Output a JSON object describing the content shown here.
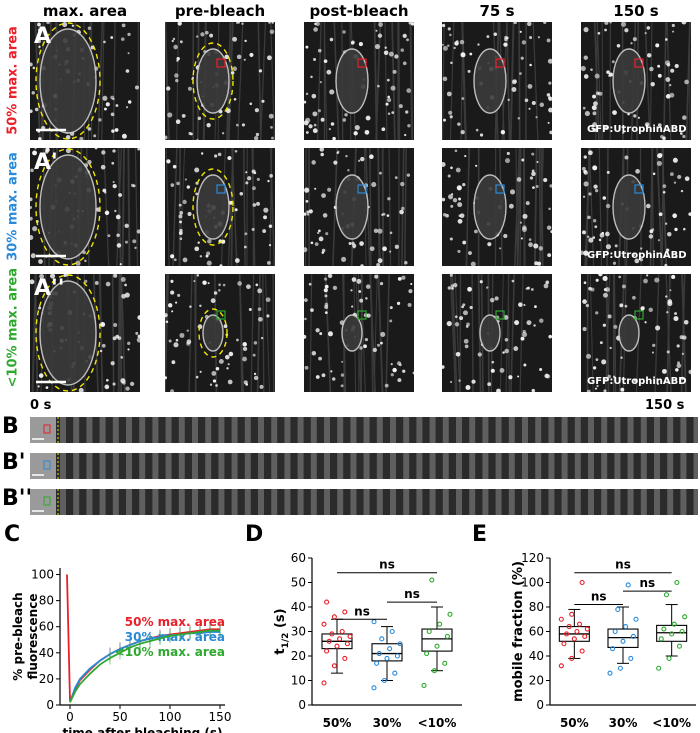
{
  "columns": [
    "max. area",
    "pre-bleach",
    "post-bleach",
    "75 s",
    "150 s"
  ],
  "rows": [
    {
      "letter": "A",
      "label": "50% max. area",
      "color": "#e8202a",
      "stamp": "GFP:UtrophinABD"
    },
    {
      "letter": "A'",
      "label": "30% max. area",
      "color": "#2a8ad8",
      "stamp": "GFP:UtrophinABD"
    },
    {
      "letter": "A''",
      "label": "<10% max. area",
      "color": "#2ea82e",
      "stamp": "GFP:UtrophinABD"
    }
  ],
  "kymograph": {
    "start_label": "0 s",
    "end_label": "150 s",
    "rows": [
      {
        "letter": "B",
        "color": "#e8202a"
      },
      {
        "letter": "B'",
        "color": "#2a8ad8"
      },
      {
        "letter": "B''",
        "color": "#2ea82e"
      }
    ]
  },
  "panel_letters": {
    "C": "C",
    "D": "D",
    "E": "E"
  },
  "chart_data": [
    {
      "type": "line",
      "panel": "C",
      "xlabel": "time after bleaching (s)",
      "ylabel": "% pre-bleach fluorescence",
      "xlim": [
        -10,
        155
      ],
      "ylim": [
        0,
        105
      ],
      "xticks": [
        0,
        50,
        100,
        150
      ],
      "yticks": [
        0,
        20,
        40,
        60,
        80,
        100
      ],
      "legend_position": "right",
      "series": [
        {
          "name": "50% max. area",
          "color": "#e8202a",
          "x": [
            -3,
            0,
            5,
            10,
            20,
            30,
            40,
            50,
            60,
            70,
            80,
            90,
            100,
            110,
            120,
            130,
            140,
            150
          ],
          "y": [
            100,
            3,
            12,
            19,
            27,
            34,
            39,
            43,
            46,
            49,
            51,
            53,
            54,
            55,
            56,
            57,
            58,
            58
          ]
        },
        {
          "name": "30% max. area",
          "color": "#2a8ad8",
          "x": [
            0,
            5,
            10,
            20,
            30,
            40,
            50,
            60,
            70,
            80,
            90,
            100,
            110,
            120,
            130,
            140,
            150
          ],
          "y": [
            2,
            13,
            20,
            28,
            34,
            39,
            43,
            46,
            49,
            51,
            52,
            53,
            54,
            55,
            55,
            56,
            56
          ]
        },
        {
          "name": "<10% max. area",
          "color": "#2ea82e",
          "x": [
            0,
            5,
            10,
            20,
            30,
            40,
            50,
            60,
            70,
            80,
            90,
            100,
            110,
            120,
            130,
            140,
            150
          ],
          "y": [
            2,
            10,
            16,
            24,
            31,
            36,
            40,
            44,
            47,
            49,
            51,
            53,
            54,
            55,
            56,
            57,
            57
          ]
        }
      ]
    },
    {
      "type": "box",
      "panel": "D",
      "ylabel_main": "t",
      "ylabel_sub": "1/2",
      "ylabel_unit": " (s)",
      "ylim": [
        0,
        60
      ],
      "yticks": [
        0,
        10,
        20,
        30,
        40,
        50,
        60
      ],
      "categories": [
        "50%",
        "30%",
        "<10%"
      ],
      "colors": [
        "#e8202a",
        "#2a8ad8",
        "#2ea82e"
      ],
      "boxes": [
        {
          "min": 13,
          "q1": 23,
          "median": 26,
          "q3": 29,
          "max": 35
        },
        {
          "min": 10,
          "q1": 18,
          "median": 21,
          "q3": 25,
          "max": 32
        },
        {
          "min": 14,
          "q1": 22,
          "median": 27,
          "q3": 31,
          "max": 40
        }
      ],
      "points": [
        [
          9,
          16,
          19,
          22,
          24,
          25,
          26,
          27,
          28,
          29,
          30,
          33,
          36,
          38,
          42
        ],
        [
          7,
          10,
          13,
          17,
          19,
          20,
          21,
          23,
          25,
          27,
          30,
          34
        ],
        [
          8,
          14,
          17,
          21,
          24,
          28,
          30,
          33,
          37,
          51
        ]
      ],
      "significance": [
        {
          "from": 0,
          "to": 2,
          "label": "ns",
          "y": 54
        },
        {
          "from": 0,
          "to": 1,
          "label": "ns",
          "y": 35
        },
        {
          "from": 1,
          "to": 2,
          "label": "ns",
          "y": 42
        }
      ]
    },
    {
      "type": "box",
      "panel": "E",
      "ylabel_main": "mobile fraction (%)",
      "ylim": [
        0,
        120
      ],
      "yticks": [
        0,
        20,
        40,
        60,
        80,
        100,
        120
      ],
      "categories": [
        "50%",
        "30%",
        "<10%"
      ],
      "colors": [
        "#e8202a",
        "#2a8ad8",
        "#2ea82e"
      ],
      "boxes": [
        {
          "min": 38,
          "q1": 52,
          "median": 58,
          "q3": 64,
          "max": 78
        },
        {
          "min": 34,
          "q1": 47,
          "median": 55,
          "q3": 62,
          "max": 80
        },
        {
          "min": 40,
          "q1": 52,
          "median": 59,
          "q3": 65,
          "max": 82
        }
      ],
      "points": [
        [
          32,
          38,
          44,
          50,
          54,
          56,
          58,
          60,
          62,
          64,
          66,
          70,
          74,
          100
        ],
        [
          26,
          30,
          38,
          46,
          52,
          56,
          60,
          64,
          70,
          78,
          98
        ],
        [
          30,
          38,
          48,
          54,
          58,
          60,
          62,
          66,
          72,
          90,
          100
        ]
      ],
      "significance": [
        {
          "from": 0,
          "to": 2,
          "label": "ns",
          "y": 108
        },
        {
          "from": 0,
          "to": 1,
          "label": "ns",
          "y": 82
        },
        {
          "from": 1,
          "to": 2,
          "label": "ns",
          "y": 93
        }
      ]
    }
  ]
}
